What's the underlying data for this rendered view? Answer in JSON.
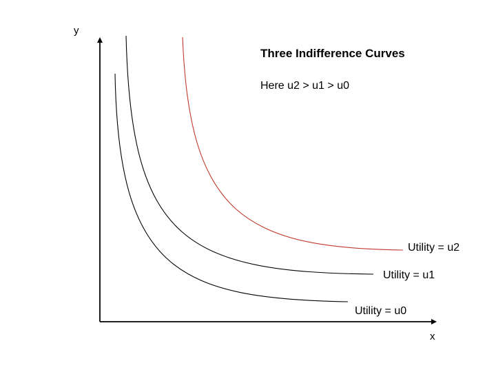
{
  "diagram": {
    "title": "Three Indifference Curves",
    "subtitle": "Here u2 > u1 > u0",
    "axes": {
      "x_label": "x",
      "y_label": "y",
      "color": "#000000"
    },
    "curves": [
      {
        "id": "u0",
        "label": "Utility = u0",
        "color": "#000000"
      },
      {
        "id": "u1",
        "label": "Utility = u1",
        "color": "#000000"
      },
      {
        "id": "u2",
        "label": "Utility = u2",
        "color": "#c0392b"
      }
    ]
  }
}
